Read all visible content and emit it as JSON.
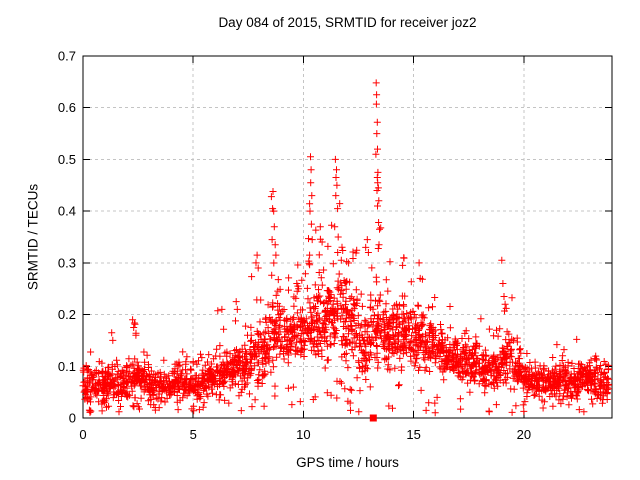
{
  "chart_data": {
    "type": "scatter",
    "title": "Day 084 of 2015, SRMTID for receiver joz2",
    "xlabel": "GPS time / hours",
    "ylabel": "SRMTID / TECUs",
    "xlim": [
      0,
      24
    ],
    "ylim": [
      0,
      0.7
    ],
    "xtick_values": [
      0,
      5,
      10,
      15,
      20
    ],
    "xtick_labels": [
      "0",
      "5",
      "10",
      "15",
      "20"
    ],
    "ytick_values": [
      0,
      0.1,
      0.2,
      0.3,
      0.4,
      0.5,
      0.6,
      0.7
    ],
    "ytick_labels": [
      "0",
      "0.1",
      "0.2",
      "0.3",
      "0.4",
      "0.5",
      "0.6",
      "0.7"
    ],
    "grid": true,
    "legend": "none",
    "marker": {
      "shape": "plus",
      "size": 7
    },
    "colors": {
      "marker": "#ff0000",
      "grid": "#c4c4c4",
      "border": "#000000",
      "background": "#ffffff",
      "text": "#000000"
    },
    "special_points": [
      {
        "x": 13.17,
        "y": 0,
        "shape": "filled-square"
      }
    ],
    "seed": 20150384,
    "density_bins": [
      [
        0.0,
        0.5,
        0.02,
        0.1,
        0.13,
        52
      ],
      [
        0.5,
        0.5,
        0.03,
        0.1,
        0.12,
        50
      ],
      [
        1.0,
        0.5,
        0.03,
        0.11,
        0.17,
        52
      ],
      [
        1.5,
        0.5,
        0.03,
        0.1,
        0.14,
        50
      ],
      [
        2.0,
        0.5,
        0.03,
        0.12,
        0.2,
        52
      ],
      [
        2.5,
        0.5,
        0.03,
        0.11,
        0.15,
        50
      ],
      [
        3.0,
        0.5,
        0.03,
        0.1,
        0.15,
        50
      ],
      [
        3.5,
        0.5,
        0.03,
        0.09,
        0.12,
        48
      ],
      [
        4.0,
        0.5,
        0.03,
        0.1,
        0.13,
        50
      ],
      [
        4.5,
        0.5,
        0.03,
        0.1,
        0.14,
        50
      ],
      [
        5.0,
        0.5,
        0.03,
        0.1,
        0.13,
        48
      ],
      [
        5.5,
        0.5,
        0.04,
        0.11,
        0.15,
        50
      ],
      [
        6.0,
        0.5,
        0.04,
        0.13,
        0.22,
        52
      ],
      [
        6.5,
        0.5,
        0.05,
        0.14,
        0.23,
        52
      ],
      [
        7.0,
        0.5,
        0.05,
        0.15,
        0.25,
        52
      ],
      [
        7.5,
        0.5,
        0.05,
        0.17,
        0.32,
        52
      ],
      [
        8.0,
        0.5,
        0.06,
        0.2,
        0.33,
        54
      ],
      [
        8.5,
        0.5,
        0.08,
        0.26,
        0.44,
        56
      ],
      [
        9.0,
        0.5,
        0.09,
        0.22,
        0.3,
        56
      ],
      [
        9.5,
        0.5,
        0.1,
        0.25,
        0.31,
        58
      ],
      [
        10.0,
        0.5,
        0.09,
        0.25,
        0.42,
        58
      ],
      [
        10.5,
        0.5,
        0.1,
        0.28,
        0.38,
        62
      ],
      [
        11.0,
        0.5,
        0.1,
        0.28,
        0.4,
        62
      ],
      [
        11.5,
        0.5,
        0.1,
        0.3,
        0.42,
        62
      ],
      [
        12.0,
        0.5,
        0.08,
        0.26,
        0.35,
        58
      ],
      [
        12.5,
        0.5,
        0.06,
        0.22,
        0.33,
        54
      ],
      [
        13.0,
        0.5,
        0.08,
        0.26,
        0.4,
        58
      ],
      [
        13.5,
        0.5,
        0.08,
        0.24,
        0.38,
        58
      ],
      [
        14.0,
        0.5,
        0.08,
        0.23,
        0.3,
        58
      ],
      [
        14.5,
        0.5,
        0.1,
        0.23,
        0.31,
        58
      ],
      [
        15.0,
        0.5,
        0.08,
        0.21,
        0.3,
        56
      ],
      [
        15.5,
        0.5,
        0.08,
        0.19,
        0.26,
        54
      ],
      [
        16.0,
        0.5,
        0.07,
        0.18,
        0.24,
        54
      ],
      [
        16.5,
        0.5,
        0.07,
        0.17,
        0.22,
        54
      ],
      [
        17.0,
        0.5,
        0.06,
        0.16,
        0.22,
        52
      ],
      [
        17.5,
        0.5,
        0.06,
        0.15,
        0.2,
        52
      ],
      [
        18.0,
        0.5,
        0.05,
        0.14,
        0.2,
        50
      ],
      [
        18.5,
        0.5,
        0.05,
        0.14,
        0.18,
        50
      ],
      [
        19.0,
        0.5,
        0.06,
        0.16,
        0.24,
        54
      ],
      [
        19.5,
        0.5,
        0.05,
        0.12,
        0.16,
        50
      ],
      [
        20.0,
        0.5,
        0.04,
        0.11,
        0.14,
        50
      ],
      [
        20.5,
        0.5,
        0.04,
        0.1,
        0.13,
        48
      ],
      [
        21.0,
        0.5,
        0.04,
        0.1,
        0.12,
        50
      ],
      [
        21.5,
        0.5,
        0.03,
        0.11,
        0.15,
        54
      ],
      [
        22.0,
        0.5,
        0.03,
        0.1,
        0.13,
        50
      ],
      [
        22.5,
        0.5,
        0.04,
        0.12,
        0.16,
        54
      ],
      [
        23.0,
        0.5,
        0.03,
        0.11,
        0.13,
        54
      ],
      [
        23.5,
        0.35,
        0.03,
        0.1,
        0.12,
        40
      ]
    ],
    "feature_points": [
      [
        1.3,
        0.165
      ],
      [
        1.35,
        0.15
      ],
      [
        2.25,
        0.19
      ],
      [
        2.3,
        0.175
      ],
      [
        2.4,
        0.16
      ],
      [
        6.3,
        0.21
      ],
      [
        6.95,
        0.225
      ],
      [
        7.0,
        0.21
      ],
      [
        7.85,
        0.3
      ],
      [
        7.9,
        0.315
      ],
      [
        7.95,
        0.29
      ],
      [
        8.62,
        0.438
      ],
      [
        8.6,
        0.405
      ],
      [
        8.65,
        0.4
      ],
      [
        8.68,
        0.37
      ],
      [
        8.58,
        0.345
      ],
      [
        8.72,
        0.335
      ],
      [
        8.75,
        0.315
      ],
      [
        9.7,
        0.26
      ],
      [
        9.75,
        0.255
      ],
      [
        9.72,
        0.245
      ],
      [
        9.78,
        0.25
      ],
      [
        10.32,
        0.505
      ],
      [
        10.35,
        0.48
      ],
      [
        10.33,
        0.455
      ],
      [
        10.38,
        0.43
      ],
      [
        10.3,
        0.4
      ],
      [
        10.36,
        0.375
      ],
      [
        10.4,
        0.345
      ],
      [
        10.28,
        0.315
      ],
      [
        11.45,
        0.5
      ],
      [
        11.5,
        0.48
      ],
      [
        11.48,
        0.465
      ],
      [
        11.52,
        0.45
      ],
      [
        11.47,
        0.43
      ],
      [
        11.55,
        0.405
      ],
      [
        11.42,
        0.37
      ],
      [
        11.58,
        0.35
      ],
      [
        11.75,
        0.33
      ],
      [
        11.72,
        0.305
      ],
      [
        12.9,
        0.345
      ],
      [
        12.95,
        0.32
      ],
      [
        13.3,
        0.648
      ],
      [
        13.32,
        0.625
      ],
      [
        13.31,
        0.607
      ],
      [
        13.35,
        0.572
      ],
      [
        13.33,
        0.55
      ],
      [
        13.36,
        0.52
      ],
      [
        13.29,
        0.51
      ],
      [
        13.38,
        0.475
      ],
      [
        13.35,
        0.465
      ],
      [
        13.37,
        0.455
      ],
      [
        13.4,
        0.445
      ],
      [
        13.34,
        0.44
      ],
      [
        13.42,
        0.42
      ],
      [
        13.36,
        0.41
      ],
      [
        13.45,
        0.365
      ],
      [
        13.43,
        0.335
      ],
      [
        14.55,
        0.31
      ],
      [
        14.5,
        0.295
      ],
      [
        15.25,
        0.3
      ],
      [
        15.3,
        0.27
      ],
      [
        19.0,
        0.305
      ],
      [
        19.05,
        0.26
      ],
      [
        19.1,
        0.235
      ],
      [
        19.15,
        0.22
      ],
      [
        19.2,
        0.212
      ],
      [
        21.5,
        0.142
      ],
      [
        22.4,
        0.152
      ]
    ]
  }
}
